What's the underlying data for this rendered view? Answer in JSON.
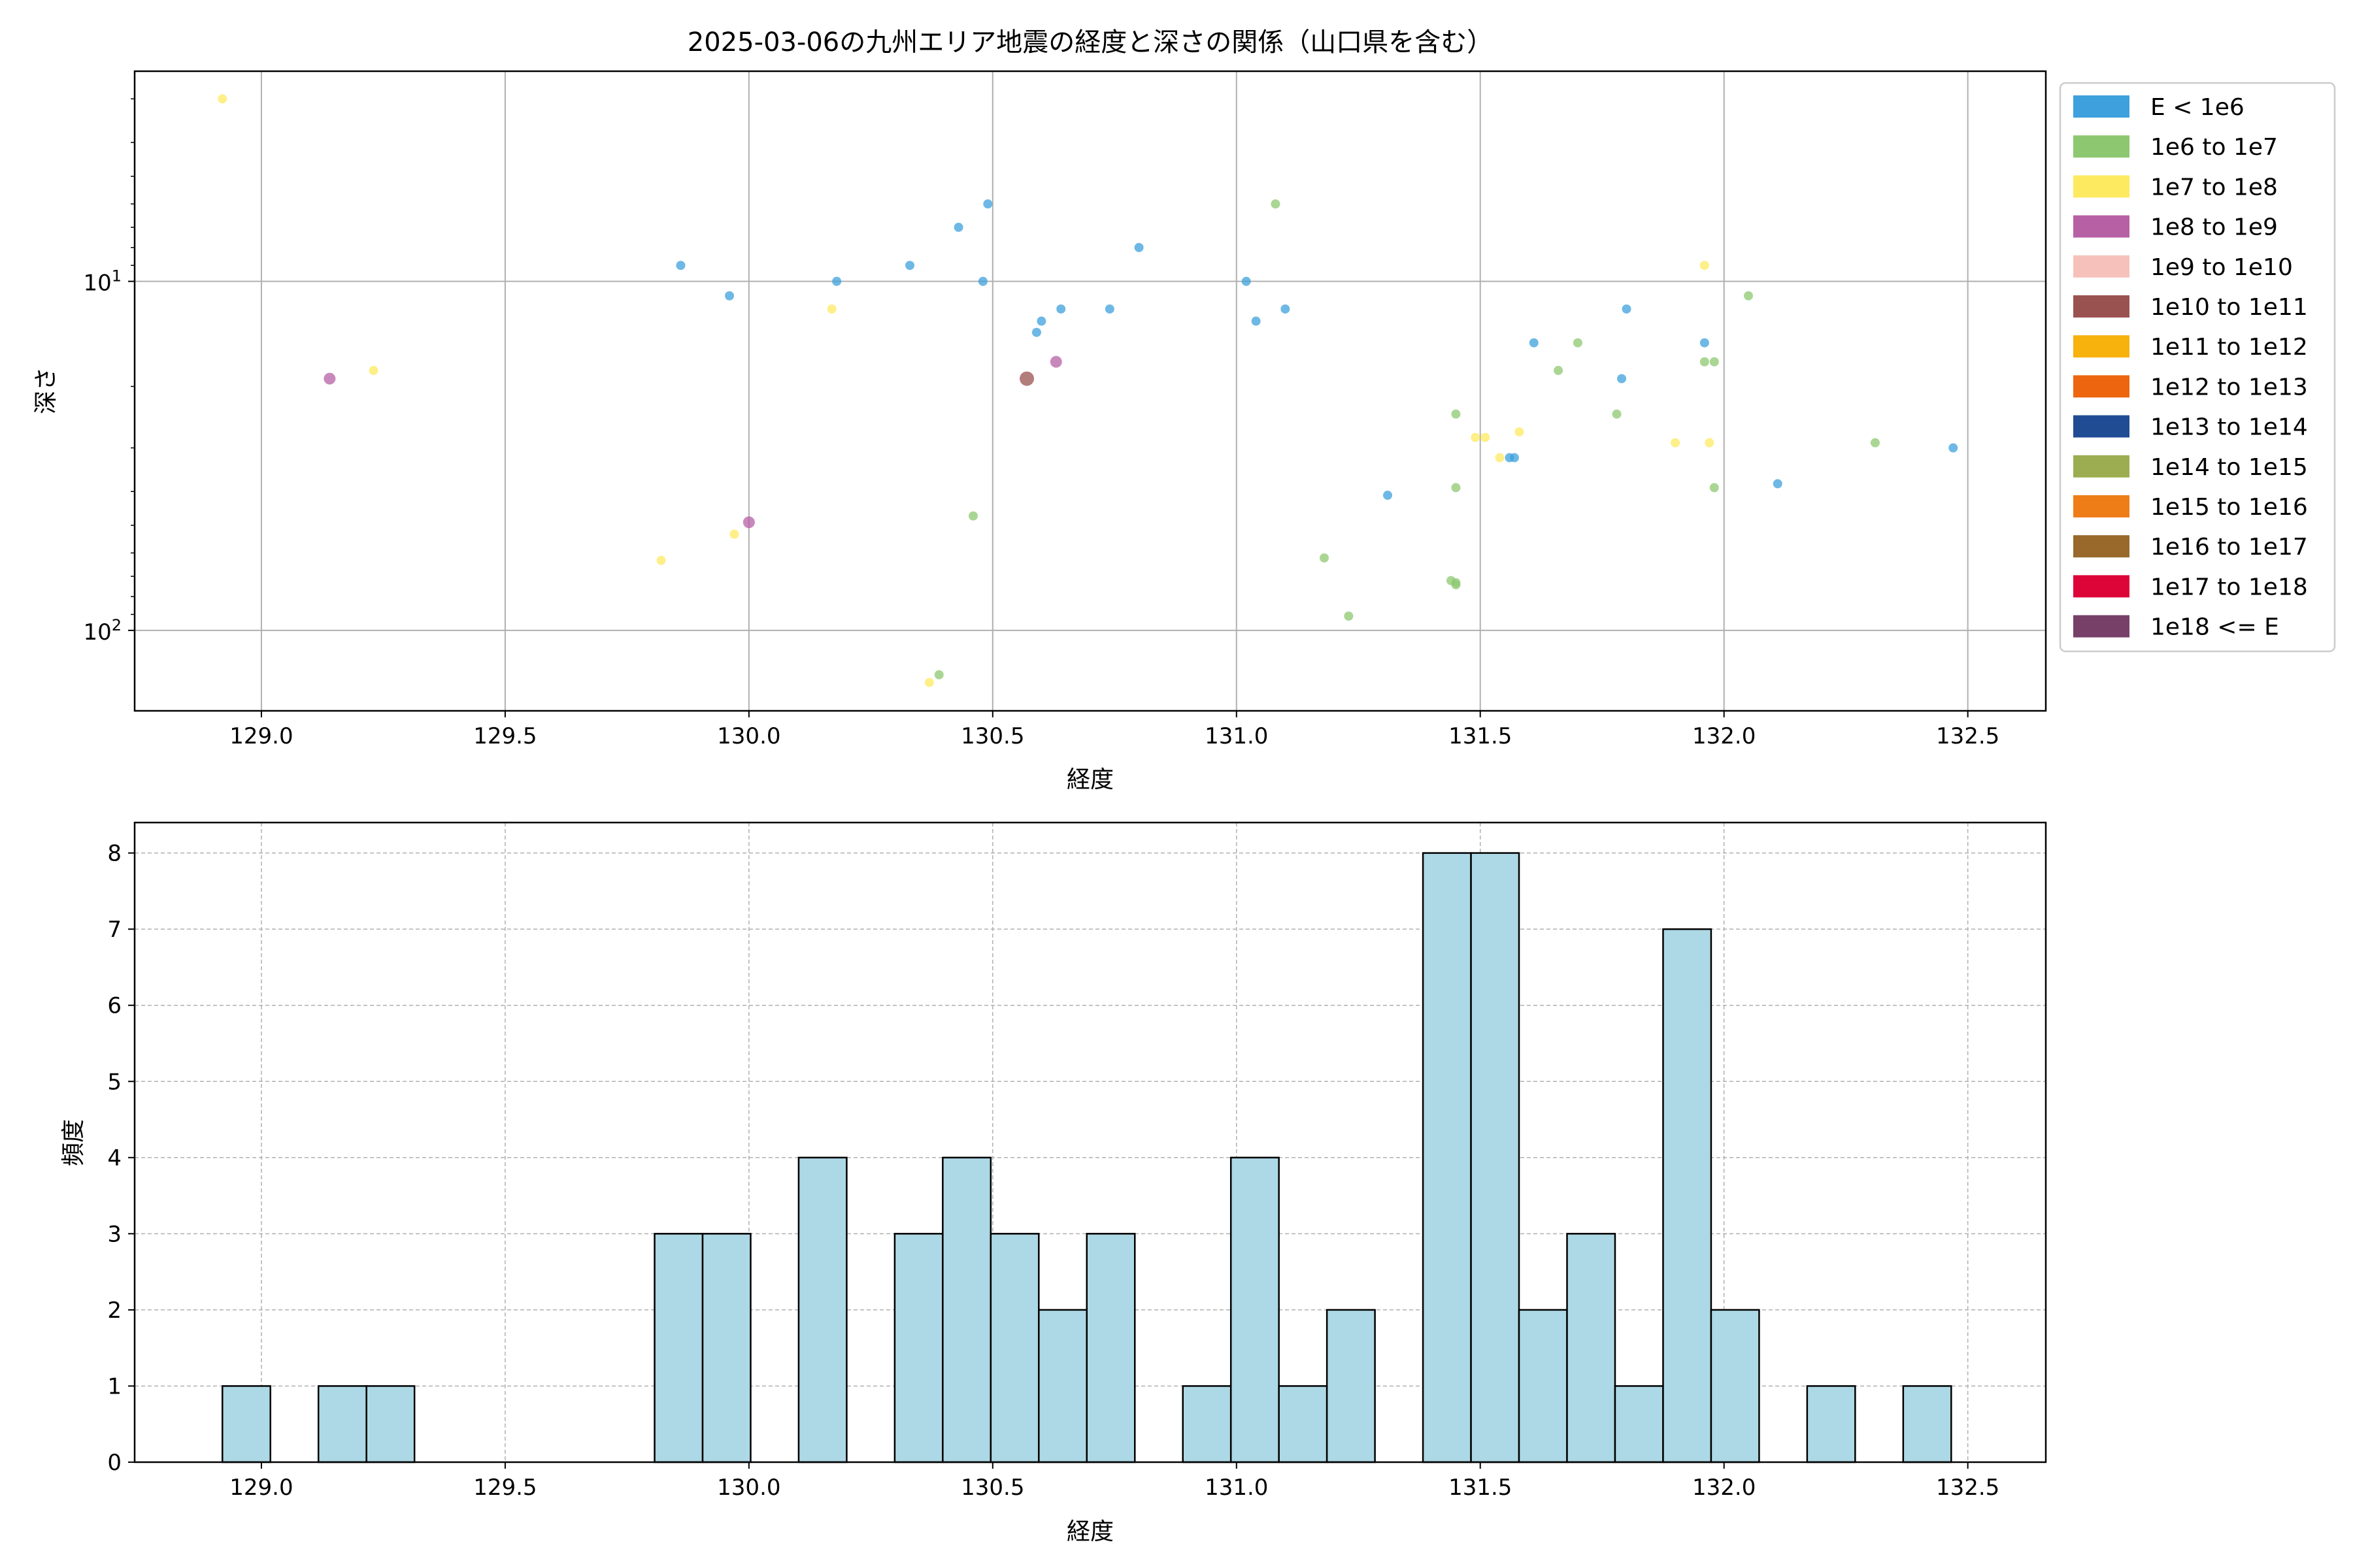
{
  "chart_data": [
    {
      "type": "scatter",
      "title": "2025-03-06の九州エリア地震の経度と深さの関係（山口県を含む）",
      "xlabel": "経度",
      "ylabel": "深さ",
      "xlim": [
        128.74,
        132.66
      ],
      "ylim": [
        170,
        2.5
      ],
      "yscale": "log",
      "y_inverted": true,
      "xticks": [
        "129.0",
        "129.5",
        "130.0",
        "130.5",
        "131.0",
        "131.5",
        "132.0",
        "132.5"
      ],
      "yticks": [
        {
          "value": 10,
          "base": "10",
          "exp": "1"
        },
        {
          "value": 100,
          "base": "10",
          "exp": "2"
        }
      ],
      "grid": true,
      "legend_position": "outside-right",
      "legend": [
        {
          "label": "E < 1e6",
          "color": "#3ea0dc"
        },
        {
          "label": "1e6 to 1e7",
          "color": "#8dc870"
        },
        {
          "label": "1e7 to 1e8",
          "color": "#fdea60"
        },
        {
          "label": "1e8 to 1e9",
          "color": "#b760a4"
        },
        {
          "label": "1e9 to 1e10",
          "color": "#f6c1bb"
        },
        {
          "label": "1e10 to 1e11",
          "color": "#9a5250"
        },
        {
          "label": "1e11 to 1e12",
          "color": "#f7b20d"
        },
        {
          "label": "1e12 to 1e13",
          "color": "#ed650e"
        },
        {
          "label": "1e13 to 1e14",
          "color": "#1f4c93"
        },
        {
          "label": "1e14 to 1e15",
          "color": "#9bad50"
        },
        {
          "label": "1e15 to 1e16",
          "color": "#ee7d17"
        },
        {
          "label": "1e16 to 1e17",
          "color": "#98692b"
        },
        {
          "label": "1e17 to 1e18",
          "color": "#dd0438"
        },
        {
          "label": "1e18 <= E",
          "color": "#764068"
        }
      ],
      "points": [
        {
          "x": 129.86,
          "y": 9,
          "c": 0
        },
        {
          "x": 129.96,
          "y": 11,
          "c": 0
        },
        {
          "x": 130.18,
          "y": 10,
          "c": 0
        },
        {
          "x": 130.33,
          "y": 9,
          "c": 0
        },
        {
          "x": 130.43,
          "y": 7,
          "c": 0
        },
        {
          "x": 130.48,
          "y": 10,
          "c": 0
        },
        {
          "x": 130.49,
          "y": 6,
          "c": 0
        },
        {
          "x": 130.59,
          "y": 14,
          "c": 0
        },
        {
          "x": 130.6,
          "y": 13,
          "c": 0
        },
        {
          "x": 130.64,
          "y": 12,
          "c": 0
        },
        {
          "x": 130.74,
          "y": 12,
          "c": 0
        },
        {
          "x": 130.8,
          "y": 8,
          "c": 0
        },
        {
          "x": 131.02,
          "y": 10,
          "c": 0
        },
        {
          "x": 131.04,
          "y": 13,
          "c": 0
        },
        {
          "x": 131.1,
          "y": 12,
          "c": 0
        },
        {
          "x": 131.31,
          "y": 41,
          "c": 0
        },
        {
          "x": 131.56,
          "y": 32,
          "c": 0
        },
        {
          "x": 131.57,
          "y": 32,
          "c": 0
        },
        {
          "x": 131.61,
          "y": 15,
          "c": 0
        },
        {
          "x": 131.79,
          "y": 19,
          "c": 0
        },
        {
          "x": 131.8,
          "y": 12,
          "c": 0
        },
        {
          "x": 131.96,
          "y": 15,
          "c": 0
        },
        {
          "x": 132.11,
          "y": 38,
          "c": 0
        },
        {
          "x": 132.47,
          "y": 30,
          "c": 0
        },
        {
          "x": 130.39,
          "y": 134,
          "c": 1
        },
        {
          "x": 130.46,
          "y": 47,
          "c": 1
        },
        {
          "x": 131.08,
          "y": 6,
          "c": 1
        },
        {
          "x": 131.18,
          "y": 62,
          "c": 1
        },
        {
          "x": 131.23,
          "y": 91,
          "c": 1
        },
        {
          "x": 131.44,
          "y": 72,
          "c": 1
        },
        {
          "x": 131.45,
          "y": 73,
          "c": 1
        },
        {
          "x": 131.45,
          "y": 74,
          "c": 1
        },
        {
          "x": 131.45,
          "y": 24,
          "c": 1
        },
        {
          "x": 131.45,
          "y": 39,
          "c": 1
        },
        {
          "x": 131.66,
          "y": 18,
          "c": 1
        },
        {
          "x": 131.7,
          "y": 15,
          "c": 1
        },
        {
          "x": 131.78,
          "y": 24,
          "c": 1
        },
        {
          "x": 131.96,
          "y": 17,
          "c": 1
        },
        {
          "x": 131.98,
          "y": 17,
          "c": 1
        },
        {
          "x": 131.98,
          "y": 39,
          "c": 1
        },
        {
          "x": 132.05,
          "y": 11,
          "c": 1
        },
        {
          "x": 132.31,
          "y": 29,
          "c": 1
        },
        {
          "x": 128.92,
          "y": 3,
          "c": 2
        },
        {
          "x": 129.23,
          "y": 18,
          "c": 2
        },
        {
          "x": 129.82,
          "y": 63,
          "c": 2
        },
        {
          "x": 129.97,
          "y": 53,
          "c": 2
        },
        {
          "x": 130.17,
          "y": 12,
          "c": 2
        },
        {
          "x": 130.37,
          "y": 141,
          "c": 2
        },
        {
          "x": 131.49,
          "y": 28,
          "c": 2
        },
        {
          "x": 131.51,
          "y": 28,
          "c": 2
        },
        {
          "x": 131.54,
          "y": 32,
          "c": 2
        },
        {
          "x": 131.58,
          "y": 27,
          "c": 2
        },
        {
          "x": 131.9,
          "y": 29,
          "c": 2
        },
        {
          "x": 131.96,
          "y": 9,
          "c": 2
        },
        {
          "x": 131.97,
          "y": 29,
          "c": 2
        },
        {
          "x": 129.14,
          "y": 19,
          "c": 3
        },
        {
          "x": 130.0,
          "y": 49,
          "c": 3
        },
        {
          "x": 130.63,
          "y": 17,
          "c": 3
        },
        {
          "x": 130.57,
          "y": 19,
          "c": 5
        }
      ]
    },
    {
      "type": "bar",
      "subtype": "histogram",
      "xlabel": "経度",
      "ylabel": "頻度",
      "xlim": [
        128.74,
        132.66
      ],
      "ylim": [
        0,
        8.4
      ],
      "xticks": [
        "129.0",
        "129.5",
        "130.0",
        "130.5",
        "131.0",
        "131.5",
        "132.0",
        "132.5"
      ],
      "yticks": [
        "0",
        "1",
        "2",
        "3",
        "4",
        "5",
        "6",
        "7",
        "8"
      ],
      "grid": true,
      "bar_color": "#add8e6",
      "bin_start": 128.92,
      "bin_width": 0.0985,
      "values": [
        1,
        0,
        1,
        1,
        0,
        0,
        0,
        0,
        0,
        3,
        3,
        0,
        4,
        0,
        3,
        4,
        3,
        2,
        3,
        0,
        1,
        4,
        1,
        2,
        0,
        8,
        8,
        2,
        3,
        1,
        7,
        2,
        0,
        1,
        0,
        1
      ]
    }
  ]
}
